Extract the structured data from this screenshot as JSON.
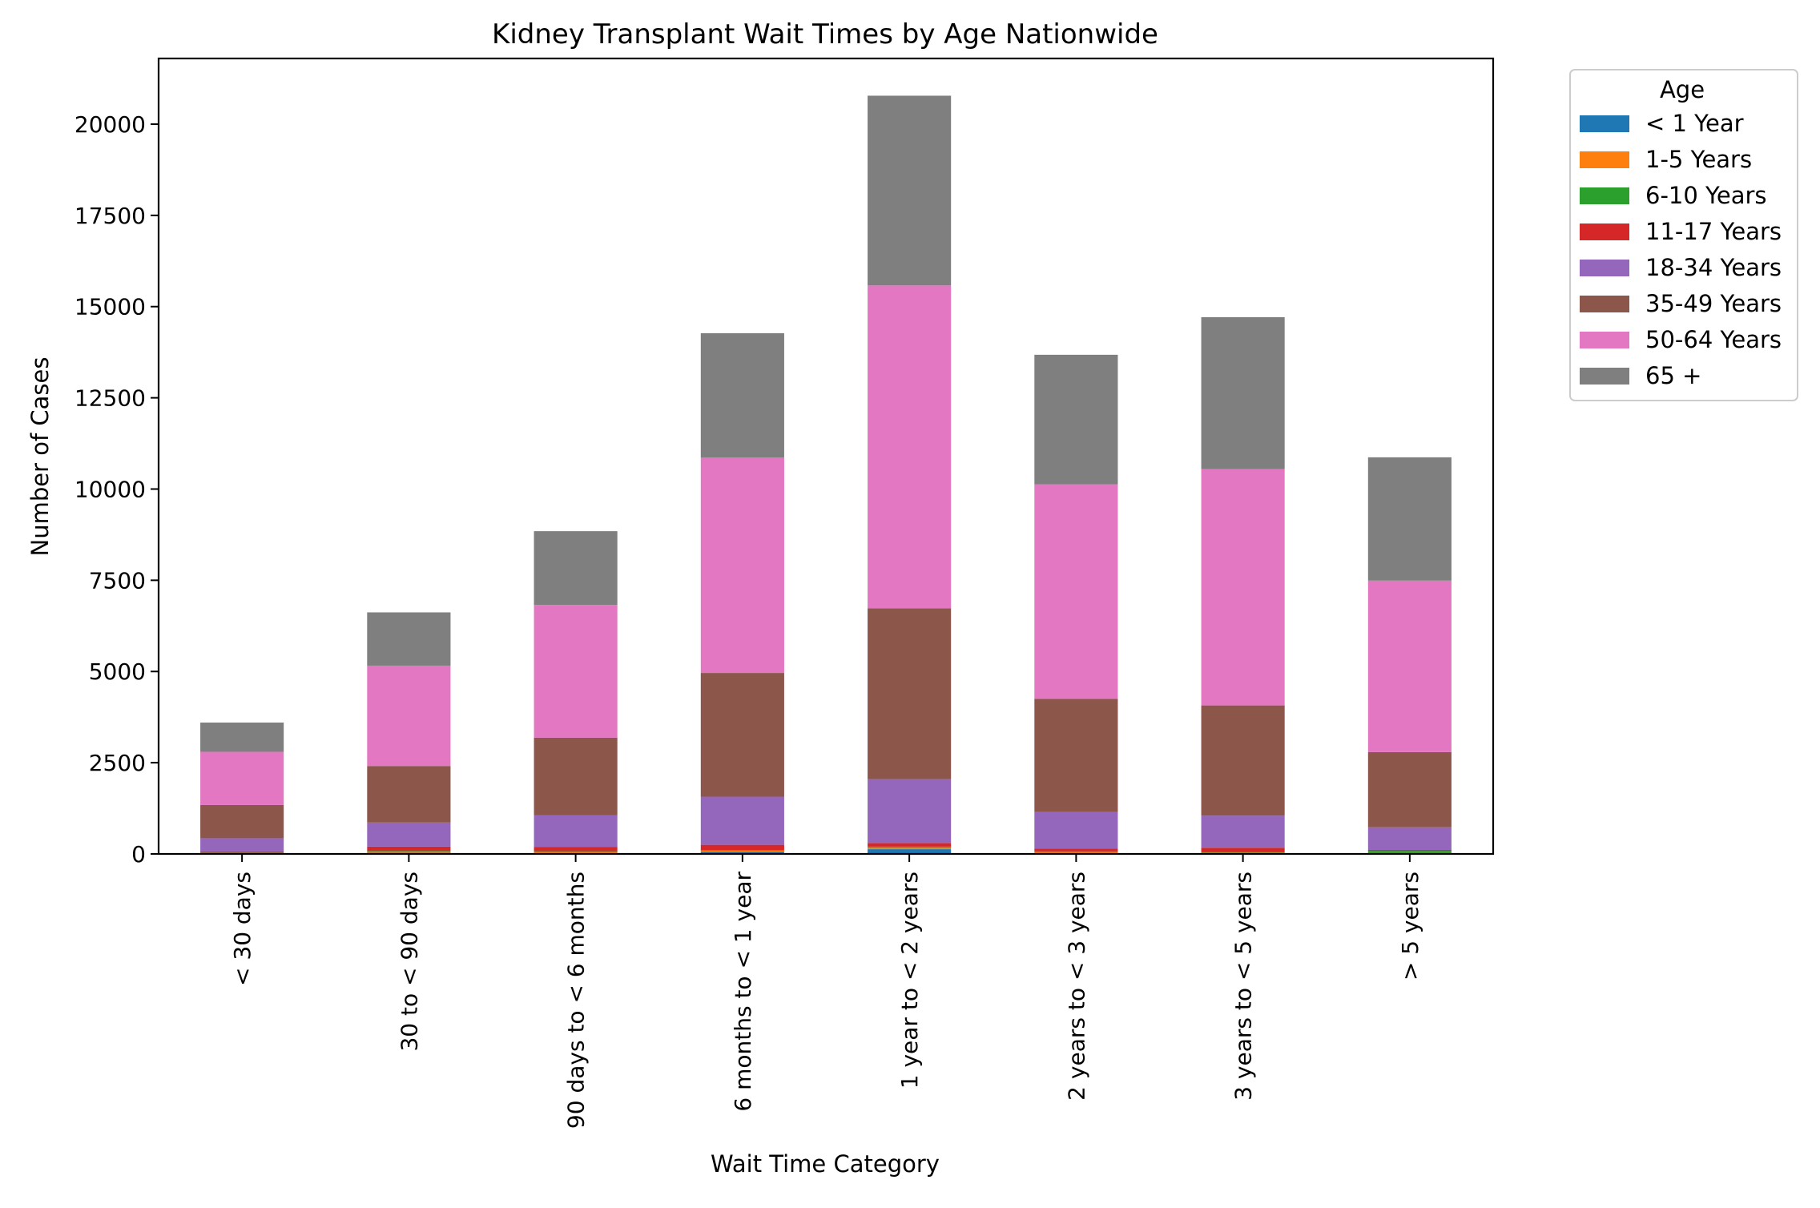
{
  "chart_data": {
    "type": "bar",
    "stacked": true,
    "title": "Kidney Transplant Wait Times by Age Nationwide",
    "xlabel": "Wait Time Category",
    "ylabel": "Number of Cases",
    "ylim": [
      0,
      21800
    ],
    "yticks": [
      0,
      2500,
      5000,
      7500,
      10000,
      12500,
      15000,
      17500,
      20000
    ],
    "ytick_labels": [
      "0",
      "2500",
      "5000",
      "7500",
      "10000",
      "12500",
      "15000",
      "17500",
      "20000"
    ],
    "grid": false,
    "legend": {
      "title": "Age",
      "placement": "outside-top-right"
    },
    "categories": [
      "< 30 days",
      "30 to < 90 days",
      "90 days to < 6 months",
      "6 months to < 1 year",
      "1 year to < 2 years",
      "2 years to < 3 years",
      "3 years to < 5 years",
      "> 5 years"
    ],
    "series": [
      {
        "name": "< 1 Year",
        "color": "#1f77b4",
        "values": [
          10,
          30,
          25,
          60,
          130,
          25,
          20,
          10
        ]
      },
      {
        "name": "1-5 Years",
        "color": "#ff7f0e",
        "values": [
          15,
          20,
          20,
          30,
          40,
          20,
          15,
          15
        ]
      },
      {
        "name": "6-10 Years",
        "color": "#2ca02c",
        "values": [
          10,
          30,
          30,
          20,
          30,
          25,
          20,
          60
        ]
      },
      {
        "name": "11-17 Years",
        "color": "#d62728",
        "values": [
          35,
          120,
          120,
          140,
          100,
          80,
          115,
          25
        ]
      },
      {
        "name": "18-34 Years",
        "color": "#9467bd",
        "values": [
          360,
          660,
          870,
          1320,
          1750,
          1000,
          880,
          620
        ]
      },
      {
        "name": "35-49 Years",
        "color": "#8c564b",
        "values": [
          910,
          1550,
          2120,
          3390,
          4680,
          3100,
          3020,
          2060
        ]
      },
      {
        "name": "50-64 Years",
        "color": "#e377c2",
        "values": [
          1460,
          2750,
          3640,
          5900,
          8850,
          5880,
          6480,
          4700
        ]
      },
      {
        "name": "65 +",
        "color": "#7f7f7f",
        "values": [
          800,
          1460,
          2020,
          3410,
          5200,
          3550,
          4160,
          3380
        ]
      }
    ]
  }
}
